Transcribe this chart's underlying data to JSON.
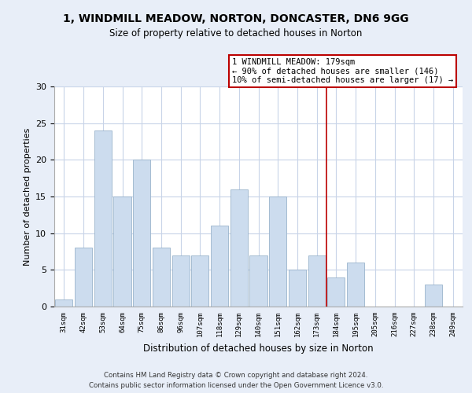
{
  "title": "1, WINDMILL MEADOW, NORTON, DONCASTER, DN6 9GG",
  "subtitle": "Size of property relative to detached houses in Norton",
  "xlabel": "Distribution of detached houses by size in Norton",
  "ylabel": "Number of detached properties",
  "categories": [
    "31sqm",
    "42sqm",
    "53sqm",
    "64sqm",
    "75sqm",
    "86sqm",
    "96sqm",
    "107sqm",
    "118sqm",
    "129sqm",
    "140sqm",
    "151sqm",
    "162sqm",
    "173sqm",
    "184sqm",
    "195sqm",
    "205sqm",
    "216sqm",
    "227sqm",
    "238sqm",
    "249sqm"
  ],
  "values": [
    1,
    8,
    24,
    15,
    20,
    8,
    7,
    7,
    11,
    16,
    7,
    15,
    5,
    7,
    4,
    6,
    0,
    0,
    0,
    3,
    0
  ],
  "bar_color": "#ccdcee",
  "bar_edge_color": "#9ab4cc",
  "vline_x_index": 13.5,
  "vline_color": "#bb0000",
  "annotation_line1": "1 WINDMILL MEADOW: 179sqm",
  "annotation_line2": "← 90% of detached houses are smaller (146)",
  "annotation_line3": "10% of semi-detached houses are larger (17) →",
  "annotation_box_edge_color": "#bb0000",
  "ylim": [
    0,
    30
  ],
  "yticks": [
    0,
    5,
    10,
    15,
    20,
    25,
    30
  ],
  "grid_color": "#c8d4e8",
  "background_color": "#e8eef8",
  "plot_bg_color": "#ffffff",
  "footer_line1": "Contains HM Land Registry data © Crown copyright and database right 2024.",
  "footer_line2": "Contains public sector information licensed under the Open Government Licence v3.0."
}
